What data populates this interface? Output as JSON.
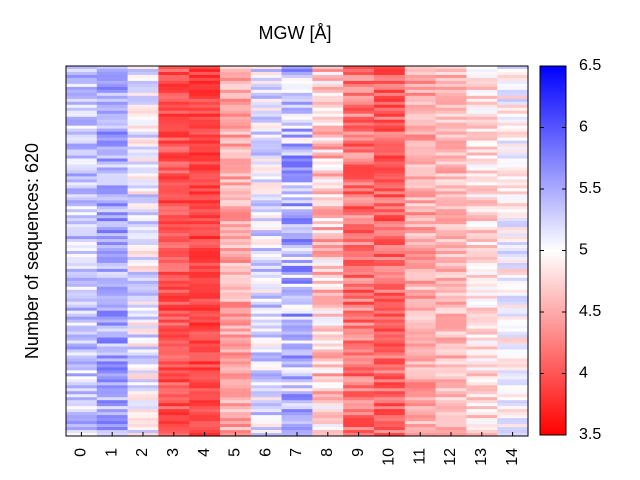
{
  "chart_data": {
    "type": "heatmap",
    "title": "MGW [Å]",
    "ylabel": "Number of sequences: 620",
    "xlabel": "",
    "n_sequences": 620,
    "x_categories": [
      "0",
      "1",
      "2",
      "3",
      "4",
      "5",
      "6",
      "7",
      "8",
      "9",
      "10",
      "11",
      "12",
      "13",
      "14"
    ],
    "colorbar": {
      "min": 3.5,
      "max": 6.5,
      "ticks": [
        "3.5",
        "4",
        "4.5",
        "5",
        "5.5",
        "6",
        "6.5"
      ],
      "tick_values": [
        3.5,
        4.0,
        4.5,
        5.0,
        5.5,
        6.0,
        6.5
      ],
      "colormap": [
        "#ff0000",
        "#ffffff",
        "#0000ff"
      ]
    },
    "column_means": [
      5.3,
      5.5,
      5.1,
      4.0,
      3.9,
      4.5,
      5.2,
      5.4,
      4.7,
      4.2,
      4.1,
      4.5,
      4.6,
      4.8,
      5.0
    ],
    "column_spread": [
      0.35,
      0.35,
      0.4,
      0.25,
      0.2,
      0.3,
      0.4,
      0.5,
      0.45,
      0.35,
      0.3,
      0.3,
      0.25,
      0.3,
      0.35
    ]
  }
}
